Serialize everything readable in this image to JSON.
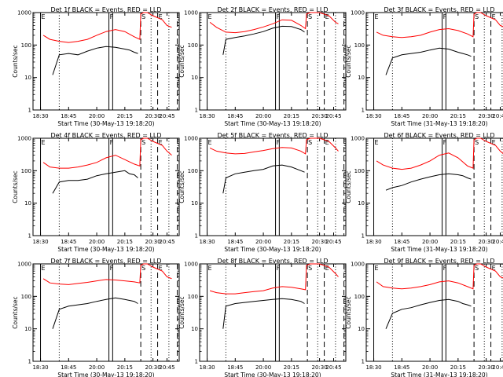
{
  "chart_data": {
    "type": "line",
    "grid": "3x3",
    "y_scale": "log",
    "ylim": [
      1,
      1000
    ],
    "y_ticks": [
      1,
      10,
      100,
      1000
    ],
    "y_tick_labels": [
      "1",
      "10",
      "100",
      "1000"
    ],
    "x_tick_labels": [
      "18:30",
      "18:45",
      "20:00",
      "20:15",
      "20:30",
      "20:45"
    ],
    "colors": {
      "events": "#000000",
      "lld": "#ff0000"
    },
    "vertical_markers": [
      {
        "label": "E",
        "at": "18:30",
        "style": "solid"
      },
      {
        "label": "F",
        "at": "19:43",
        "style": "solid"
      },
      {
        "label": "",
        "at": "19:47",
        "style": "solid"
      },
      {
        "label": "S",
        "at": "20:17",
        "style": "dashed"
      },
      {
        "label": "E",
        "at": "20:35",
        "style": "dashed"
      },
      {
        "label": "",
        "at": "20:56",
        "style": "dashed"
      }
    ],
    "dotted_lines_at": [
      "18:50",
      "20:28",
      "20:47"
    ],
    "panels": [
      {
        "title": "Det 1f BLACK = Events, RED = LLD",
        "xlabel": "Start Time (30-May-13 19:18:20)",
        "ylabel": "Counts/sec",
        "series": [
          {
            "name": "Events",
            "x": [
              "18:43",
              "18:50",
              "19:00",
              "19:10",
              "19:20",
              "19:30",
              "19:40",
              "19:50",
              "20:00",
              "20:05",
              "20:10",
              "20:14"
            ],
            "values": [
              12,
              50,
              55,
              50,
              65,
              80,
              90,
              85,
              75,
              70,
              60,
              55
            ]
          },
          {
            "name": "LLD",
            "x": [
              "18:33",
              "18:40",
              "18:50",
              "19:00",
              "19:10",
              "19:20",
              "19:30",
              "19:40",
              "19:50",
              "20:00",
              "20:10",
              "20:16",
              "20:17",
              "20:20",
              "20:24",
              "20:30",
              "20:40",
              "20:45",
              "20:50"
            ],
            "values": [
              200,
              150,
              130,
              120,
              130,
              150,
              200,
              260,
              300,
              260,
              180,
              150,
              900,
              1000,
              1000,
              800,
              600,
              400,
              350
            ]
          }
        ]
      },
      {
        "title": "Det 2f BLACK = Events, RED = LLD",
        "xlabel": "Start Time (30-May-13 19:18:20)",
        "ylabel": "Counts/sec",
        "series": [
          {
            "name": "Events",
            "x": [
              "18:47",
              "18:50",
              "19:00",
              "19:10",
              "19:20",
              "19:30",
              "19:40",
              "19:50",
              "20:00",
              "20:10",
              "20:14"
            ],
            "values": [
              50,
              150,
              170,
              190,
              220,
              260,
              330,
              380,
              370,
              300,
              250
            ]
          },
          {
            "name": "LLD",
            "x": [
              "18:33",
              "18:40",
              "18:50",
              "19:00",
              "19:10",
              "19:20",
              "19:30",
              "19:40",
              "19:50",
              "20:00",
              "20:10",
              "20:15",
              "20:16",
              "20:20",
              "20:30",
              "20:40",
              "20:47",
              "20:50"
            ],
            "values": [
              500,
              350,
              250,
              240,
              260,
              300,
              360,
              450,
              600,
              580,
              400,
              320,
              900,
              1000,
              1000,
              800,
              500,
              450
            ]
          }
        ]
      },
      {
        "title": "Det 3f BLACK = Events, RED = LLD",
        "xlabel": "Start Time (31-May-13 19:18:20)",
        "ylabel": "Counts/sec",
        "series": [
          {
            "name": "Events",
            "x": [
              "18:43",
              "18:50",
              "19:00",
              "19:10",
              "19:20",
              "19:30",
              "19:40",
              "19:50",
              "20:00",
              "20:05",
              "20:10",
              "20:14"
            ],
            "values": [
              12,
              40,
              50,
              55,
              60,
              70,
              80,
              75,
              60,
              55,
              50,
              45
            ]
          },
          {
            "name": "LLD",
            "x": [
              "18:33",
              "18:40",
              "18:50",
              "19:00",
              "19:10",
              "19:20",
              "19:30",
              "19:40",
              "19:50",
              "20:00",
              "20:10",
              "20:16",
              "20:17",
              "20:20",
              "20:24",
              "20:30",
              "20:40",
              "20:45",
              "20:50"
            ],
            "values": [
              250,
              200,
              180,
              170,
              180,
              200,
              250,
              300,
              320,
              280,
              220,
              180,
              900,
              1000,
              1000,
              800,
              600,
              400,
              350
            ]
          }
        ]
      },
      {
        "title": "Det 4f BLACK = Events, RED = LLD",
        "xlabel": "Start Time (30-May-13 19:18:20)",
        "ylabel": "Counts/sec",
        "series": [
          {
            "name": "Events",
            "x": [
              "18:43",
              "18:50",
              "19:00",
              "19:10",
              "19:20",
              "19:30",
              "19:40",
              "19:50",
              "20:00",
              "20:05",
              "20:10",
              "20:14"
            ],
            "values": [
              20,
              45,
              50,
              50,
              55,
              70,
              80,
              90,
              100,
              80,
              75,
              60
            ]
          },
          {
            "name": "LLD",
            "x": [
              "18:33",
              "18:40",
              "18:50",
              "19:00",
              "19:10",
              "19:20",
              "19:30",
              "19:40",
              "19:50",
              "20:00",
              "20:10",
              "20:16",
              "20:17",
              "20:20",
              "20:24",
              "20:30",
              "20:40",
              "20:45",
              "20:50"
            ],
            "values": [
              180,
              130,
              120,
              120,
              130,
              150,
              180,
              250,
              300,
              220,
              160,
              140,
              900,
              1000,
              1000,
              800,
              600,
              400,
              300
            ]
          }
        ]
      },
      {
        "title": "Det 5f BLACK = Events, RED = LLD",
        "xlabel": "Start Time (30-May-13 19:18:20)",
        "ylabel": "Counts/sec",
        "series": [
          {
            "name": "Events",
            "x": [
              "18:47",
              "18:50",
              "19:00",
              "19:10",
              "19:20",
              "19:30",
              "19:40",
              "19:50",
              "20:00",
              "20:10",
              "20:14"
            ],
            "values": [
              20,
              60,
              80,
              90,
              100,
              110,
              140,
              150,
              130,
              100,
              90
            ]
          },
          {
            "name": "LLD",
            "x": [
              "18:33",
              "18:40",
              "18:50",
              "19:00",
              "19:10",
              "19:20",
              "19:30",
              "19:40",
              "19:50",
              "20:00",
              "20:10",
              "20:15",
              "20:16",
              "20:20",
              "20:30",
              "20:40",
              "20:47",
              "20:50"
            ],
            "values": [
              500,
              400,
              350,
              330,
              340,
              380,
              420,
              480,
              520,
              500,
              400,
              330,
              900,
              1000,
              1000,
              800,
              500,
              400
            ]
          }
        ]
      },
      {
        "title": "Det 6f BLACK = Events, RED = LLD",
        "xlabel": "Start Time (31-May-13 19:18:20)",
        "ylabel": "Counts/sec",
        "series": [
          {
            "name": "Events",
            "x": [
              "18:43",
              "18:50",
              "19:00",
              "19:10",
              "19:20",
              "19:30",
              "19:40",
              "19:50",
              "20:00",
              "20:05",
              "20:10",
              "20:14"
            ],
            "values": [
              25,
              30,
              35,
              45,
              55,
              65,
              75,
              80,
              75,
              70,
              60,
              55
            ]
          },
          {
            "name": "LLD",
            "x": [
              "18:33",
              "18:40",
              "18:50",
              "19:00",
              "19:10",
              "19:20",
              "19:30",
              "19:40",
              "19:50",
              "20:00",
              "20:10",
              "20:16",
              "20:17",
              "20:20",
              "20:24",
              "20:30",
              "20:40",
              "20:45",
              "20:50"
            ],
            "values": [
              200,
              150,
              120,
              110,
              120,
              150,
              200,
              300,
              350,
              250,
              140,
              120,
              900,
              1000,
              1000,
              800,
              600,
              400,
              300
            ]
          }
        ]
      },
      {
        "title": "Det 7f BLACK = Events, RED = LLD",
        "xlabel": "Start Time (30-May-13 19:18:20)",
        "ylabel": "Counts/sec",
        "series": [
          {
            "name": "Events",
            "x": [
              "18:43",
              "18:50",
              "19:00",
              "19:10",
              "19:20",
              "19:30",
              "19:40",
              "19:50",
              "20:00",
              "20:05",
              "20:10",
              "20:14"
            ],
            "values": [
              10,
              40,
              50,
              55,
              60,
              70,
              80,
              90,
              80,
              75,
              70,
              60
            ]
          },
          {
            "name": "LLD",
            "x": [
              "18:33",
              "18:40",
              "18:50",
              "19:00",
              "19:10",
              "19:20",
              "19:30",
              "19:40",
              "19:50",
              "20:00",
              "20:10",
              "20:16",
              "20:17",
              "20:20",
              "20:24",
              "20:30",
              "20:40",
              "20:45",
              "20:50"
            ],
            "values": [
              350,
              260,
              240,
              230,
              250,
              270,
              300,
              330,
              320,
              300,
              280,
              260,
              900,
              1000,
              1000,
              800,
              600,
              400,
              350
            ]
          }
        ]
      },
      {
        "title": "Det 8f BLACK = Events, RED = LLD",
        "xlabel": "Start Time (30-May-13 19:18:20)",
        "ylabel": "Counts/sec",
        "series": [
          {
            "name": "Events",
            "x": [
              "18:47",
              "18:50",
              "19:00",
              "19:10",
              "19:20",
              "19:30",
              "19:40",
              "19:50",
              "20:00",
              "20:10",
              "20:14"
            ],
            "values": [
              10,
              50,
              60,
              65,
              70,
              75,
              80,
              85,
              80,
              70,
              60
            ]
          },
          {
            "name": "LLD",
            "x": [
              "18:33",
              "18:40",
              "18:50",
              "19:00",
              "19:10",
              "19:20",
              "19:30",
              "19:40",
              "19:50",
              "20:00",
              "20:10",
              "20:15",
              "20:16",
              "20:20",
              "20:30",
              "20:40",
              "20:47",
              "20:50"
            ],
            "values": [
              150,
              130,
              120,
              120,
              130,
              140,
              150,
              180,
              200,
              190,
              170,
              160,
              900,
              1000,
              1000,
              800,
              500,
              400
            ]
          }
        ]
      },
      {
        "title": "Det 9f BLACK = Events, RED = LLD",
        "xlabel": "Start Time (31-May-13 19:18:20)",
        "ylabel": "Counts/sec",
        "series": [
          {
            "name": "Events",
            "x": [
              "18:43",
              "18:50",
              "19:00",
              "19:10",
              "19:20",
              "19:30",
              "19:40",
              "19:50",
              "20:00",
              "20:05",
              "20:10",
              "20:14"
            ],
            "values": [
              10,
              30,
              40,
              45,
              55,
              65,
              75,
              80,
              70,
              60,
              55,
              50
            ]
          },
          {
            "name": "LLD",
            "x": [
              "18:33",
              "18:40",
              "18:50",
              "19:00",
              "19:10",
              "19:20",
              "19:30",
              "19:40",
              "19:50",
              "20:00",
              "20:10",
              "20:16",
              "20:17",
              "20:20",
              "20:24",
              "20:30",
              "20:40",
              "20:45",
              "20:50"
            ],
            "values": [
              280,
              200,
              180,
              170,
              180,
              200,
              230,
              280,
              300,
              260,
              200,
              170,
              900,
              1000,
              1000,
              800,
              600,
              400,
              350
            ]
          }
        ]
      }
    ]
  }
}
